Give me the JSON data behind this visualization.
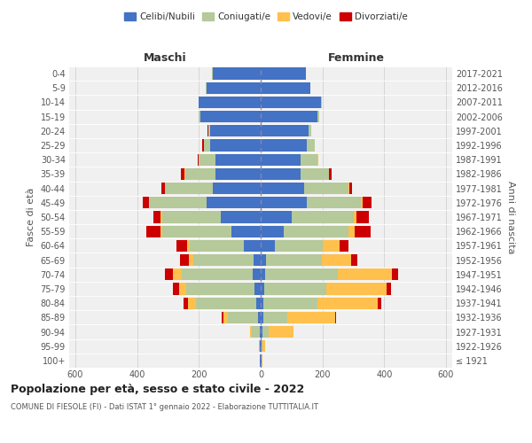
{
  "age_groups": [
    "100+",
    "95-99",
    "90-94",
    "85-89",
    "80-84",
    "75-79",
    "70-74",
    "65-69",
    "60-64",
    "55-59",
    "50-54",
    "45-49",
    "40-44",
    "35-39",
    "30-34",
    "25-29",
    "20-24",
    "15-19",
    "10-14",
    "5-9",
    "0-4"
  ],
  "birth_years": [
    "≤ 1921",
    "1922-1926",
    "1927-1931",
    "1932-1936",
    "1937-1941",
    "1942-1946",
    "1947-1951",
    "1952-1956",
    "1957-1961",
    "1962-1966",
    "1967-1971",
    "1972-1976",
    "1977-1981",
    "1982-1986",
    "1987-1991",
    "1992-1996",
    "1997-2001",
    "2002-2006",
    "2007-2011",
    "2012-2016",
    "2017-2021"
  ],
  "male": {
    "celibi": [
      2,
      2,
      4,
      10,
      15,
      20,
      25,
      22,
      55,
      95,
      130,
      175,
      155,
      145,
      145,
      165,
      165,
      195,
      200,
      175,
      155
    ],
    "coniugati": [
      2,
      4,
      25,
      95,
      195,
      220,
      230,
      195,
      175,
      225,
      190,
      185,
      155,
      100,
      55,
      20,
      5,
      5,
      2,
      2,
      2
    ],
    "vedovi": [
      0,
      0,
      5,
      15,
      25,
      25,
      30,
      15,
      8,
      5,
      3,
      2,
      1,
      1,
      0,
      0,
      0,
      0,
      0,
      0,
      0
    ],
    "divorziati": [
      0,
      0,
      0,
      5,
      15,
      20,
      25,
      30,
      35,
      45,
      25,
      20,
      10,
      12,
      5,
      5,
      2,
      2,
      0,
      0,
      0
    ]
  },
  "female": {
    "nubili": [
      2,
      3,
      5,
      10,
      10,
      12,
      15,
      18,
      45,
      75,
      100,
      150,
      140,
      130,
      130,
      150,
      155,
      185,
      195,
      160,
      145
    ],
    "coniugate": [
      2,
      2,
      20,
      75,
      175,
      200,
      235,
      180,
      155,
      210,
      200,
      175,
      145,
      90,
      55,
      25,
      10,
      5,
      2,
      2,
      2
    ],
    "vedove": [
      2,
      8,
      80,
      155,
      195,
      195,
      175,
      95,
      55,
      20,
      10,
      5,
      2,
      2,
      1,
      0,
      0,
      0,
      0,
      0,
      0
    ],
    "divorziate": [
      0,
      0,
      0,
      5,
      10,
      15,
      20,
      20,
      30,
      50,
      40,
      30,
      10,
      8,
      2,
      0,
      0,
      0,
      0,
      0,
      0
    ]
  },
  "colors": {
    "celibi_nubili": "#4472c4",
    "coniugati": "#b5c99a",
    "vedovi": "#ffc04d",
    "divorziati": "#cc0000"
  },
  "xlim": 620,
  "title": "Popolazione per età, sesso e stato civile - 2022",
  "subtitle": "COMUNE DI FIESOLE (FI) - Dati ISTAT 1° gennaio 2022 - Elaborazione TUTTITALIA.IT",
  "xlabel_left": "Maschi",
  "xlabel_right": "Femmine",
  "ylabel": "Fasce di età",
  "ylabel_right": "Anni di nascita"
}
